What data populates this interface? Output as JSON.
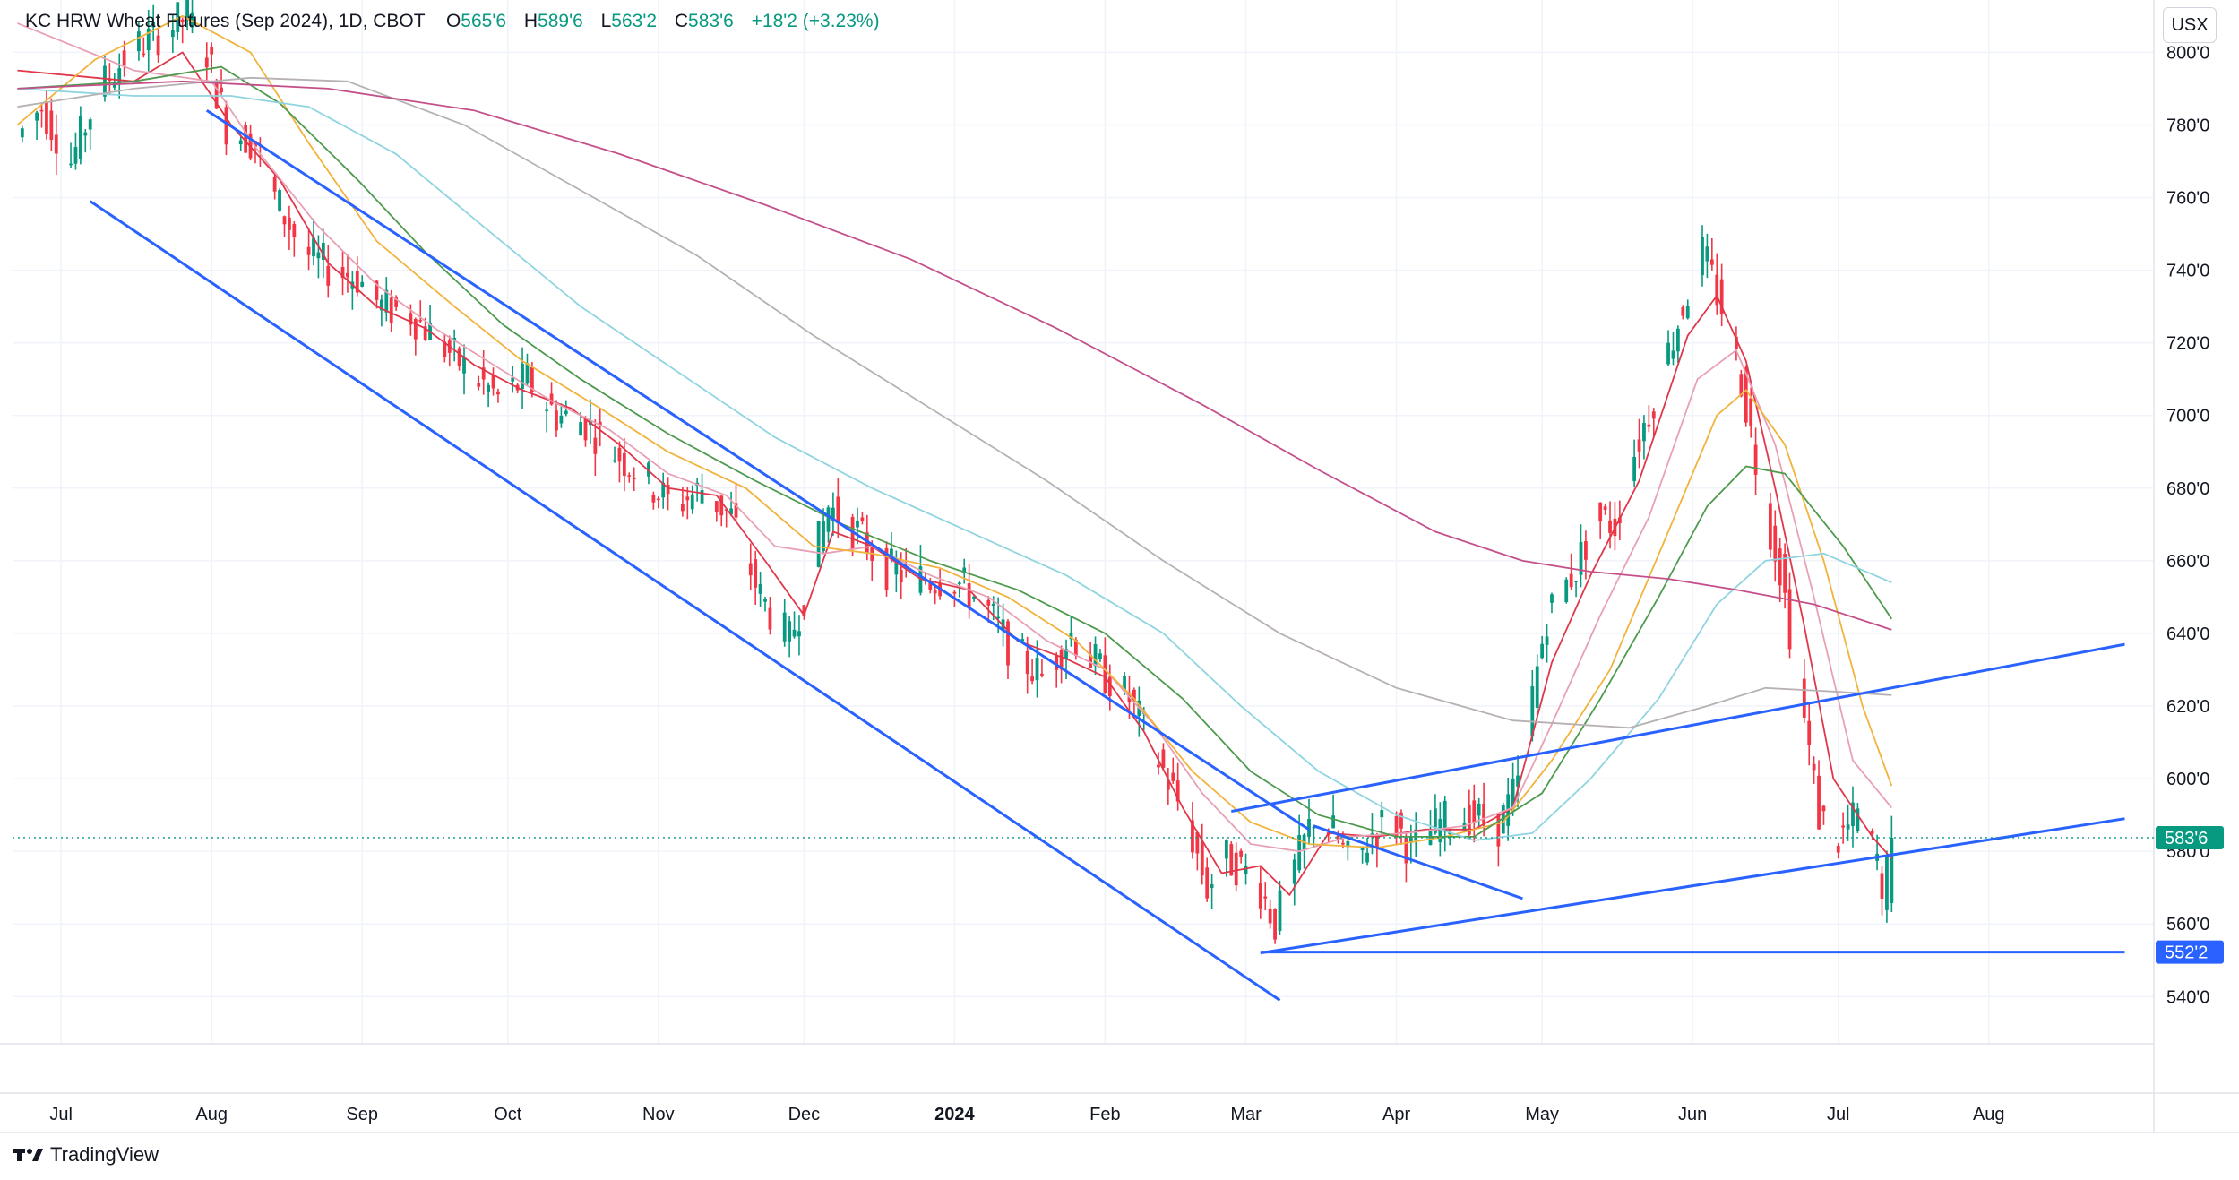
{
  "header": {
    "symbol": "KC HRW Wheat Futures (Sep 2024), 1D, CBOT",
    "open_label": "O",
    "open": "565'6",
    "high_label": "H",
    "high": "589'6",
    "low_label": "L",
    "low": "563'2",
    "close_label": "C",
    "close": "583'6",
    "change": "+18'2 (+3.23%)"
  },
  "currency_button": "USX",
  "branding": "TradingView",
  "colors": {
    "up": "#089981",
    "down": "#f23645",
    "trendline": "#2962ff",
    "price_tag_current": "#089981",
    "price_tag_support": "#2962ff"
  },
  "chart_data": {
    "type": "candlestick",
    "title": "KC HRW Wheat Futures (Sep 2024), 1D, CBOT",
    "xlabel": "",
    "ylabel": "USX",
    "ylim": [
      527,
      807
    ],
    "y_ticks": [
      {
        "v": 800,
        "label": "800'0"
      },
      {
        "v": 780,
        "label": "780'0"
      },
      {
        "v": 760,
        "label": "760'0"
      },
      {
        "v": 740,
        "label": "740'0"
      },
      {
        "v": 720,
        "label": "720'0"
      },
      {
        "v": 700,
        "label": "700'0"
      },
      {
        "v": 680,
        "label": "680'0"
      },
      {
        "v": 660,
        "label": "660'0"
      },
      {
        "v": 640,
        "label": "640'0"
      },
      {
        "v": 620,
        "label": "620'0"
      },
      {
        "v": 600,
        "label": "600'0"
      },
      {
        "v": 580,
        "label": "580'0"
      },
      {
        "v": 560,
        "label": "560'0"
      },
      {
        "v": 540,
        "label": "540'0"
      }
    ],
    "x_ticks": [
      {
        "d": 5,
        "label": "Jul"
      },
      {
        "d": 36,
        "label": "Aug"
      },
      {
        "d": 67,
        "label": "Sep"
      },
      {
        "d": 97,
        "label": "Oct"
      },
      {
        "d": 128,
        "label": "Nov"
      },
      {
        "d": 158,
        "label": "Dec"
      },
      {
        "d": 189,
        "label": "2024"
      },
      {
        "d": 220,
        "label": "Feb"
      },
      {
        "d": 249,
        "label": "Mar"
      },
      {
        "d": 280,
        "label": "Apr"
      },
      {
        "d": 310,
        "label": "May"
      },
      {
        "d": 341,
        "label": "Jun"
      },
      {
        "d": 371,
        "label": "Jul"
      },
      {
        "d": 402,
        "label": "Aug"
      }
    ],
    "xlim": [
      -5,
      436
    ],
    "ohlc_anchors": [
      [
        -4,
        775
      ],
      [
        2,
        785
      ],
      [
        8,
        770
      ],
      [
        14,
        790
      ],
      [
        20,
        800
      ],
      [
        26,
        805
      ],
      [
        32,
        810
      ],
      [
        36,
        800
      ],
      [
        40,
        780
      ],
      [
        46,
        775
      ],
      [
        50,
        760
      ],
      [
        56,
        745
      ],
      [
        62,
        740
      ],
      [
        67,
        738
      ],
      [
        72,
        730
      ],
      [
        78,
        728
      ],
      [
        84,
        720
      ],
      [
        90,
        712
      ],
      [
        96,
        705
      ],
      [
        102,
        710
      ],
      [
        108,
        700
      ],
      [
        114,
        698
      ],
      [
        120,
        690
      ],
      [
        126,
        683
      ],
      [
        132,
        675
      ],
      [
        138,
        680
      ],
      [
        144,
        672
      ],
      [
        150,
        650
      ],
      [
        156,
        638
      ],
      [
        160,
        655
      ],
      [
        164,
        675
      ],
      [
        170,
        668
      ],
      [
        176,
        658
      ],
      [
        182,
        655
      ],
      [
        190,
        655
      ],
      [
        196,
        648
      ],
      [
        202,
        635
      ],
      [
        208,
        628
      ],
      [
        214,
        640
      ],
      [
        220,
        630
      ],
      [
        226,
        622
      ],
      [
        232,
        605
      ],
      [
        238,
        588
      ],
      [
        242,
        570
      ],
      [
        246,
        578
      ],
      [
        252,
        573
      ],
      [
        256,
        560
      ],
      [
        260,
        575
      ],
      [
        264,
        590
      ],
      [
        268,
        585
      ],
      [
        272,
        575
      ],
      [
        276,
        585
      ],
      [
        280,
        590
      ],
      [
        284,
        580
      ],
      [
        290,
        588
      ],
      [
        296,
        590
      ],
      [
        302,
        587
      ],
      [
        306,
        598
      ],
      [
        308,
        615
      ],
      [
        312,
        645
      ],
      [
        318,
        658
      ],
      [
        322,
        672
      ],
      [
        326,
        670
      ],
      [
        330,
        690
      ],
      [
        334,
        705
      ],
      [
        340,
        730
      ],
      [
        344,
        745
      ],
      [
        348,
        730
      ],
      [
        352,
        710
      ],
      [
        356,
        680
      ],
      [
        360,
        658
      ],
      [
        364,
        625
      ],
      [
        368,
        590
      ],
      [
        372,
        583
      ],
      [
        376,
        590
      ],
      [
        380,
        578
      ],
      [
        381,
        563
      ],
      [
        382,
        583
      ]
    ],
    "moving_averages": [
      {
        "name": "MA short (red)",
        "color": "#e0364a",
        "points": [
          [
            -4,
            795
          ],
          [
            20,
            792
          ],
          [
            30,
            800
          ],
          [
            40,
            780
          ],
          [
            50,
            765
          ],
          [
            60,
            742
          ],
          [
            70,
            730
          ],
          [
            80,
            724
          ],
          [
            90,
            714
          ],
          [
            100,
            707
          ],
          [
            110,
            702
          ],
          [
            120,
            692
          ],
          [
            130,
            680
          ],
          [
            140,
            678
          ],
          [
            150,
            660
          ],
          [
            158,
            645
          ],
          [
            164,
            668
          ],
          [
            172,
            664
          ],
          [
            182,
            655
          ],
          [
            192,
            652
          ],
          [
            202,
            638
          ],
          [
            212,
            633
          ],
          [
            220,
            628
          ],
          [
            228,
            613
          ],
          [
            236,
            592
          ],
          [
            244,
            574
          ],
          [
            252,
            576
          ],
          [
            258,
            568
          ],
          [
            266,
            585
          ],
          [
            276,
            584
          ],
          [
            286,
            586
          ],
          [
            296,
            586
          ],
          [
            304,
            592
          ],
          [
            312,
            632
          ],
          [
            320,
            656
          ],
          [
            330,
            682
          ],
          [
            340,
            722
          ],
          [
            346,
            733
          ],
          [
            352,
            715
          ],
          [
            358,
            680
          ],
          [
            364,
            642
          ],
          [
            370,
            600
          ],
          [
            378,
            584
          ],
          [
            382,
            578
          ]
        ]
      },
      {
        "name": "MA pink",
        "color": "#e8a0b4",
        "points": [
          [
            -4,
            808
          ],
          [
            20,
            795
          ],
          [
            36,
            792
          ],
          [
            46,
            772
          ],
          [
            58,
            752
          ],
          [
            70,
            736
          ],
          [
            82,
            724
          ],
          [
            94,
            714
          ],
          [
            106,
            704
          ],
          [
            118,
            696
          ],
          [
            130,
            684
          ],
          [
            142,
            678
          ],
          [
            152,
            664
          ],
          [
            162,
            662
          ],
          [
            172,
            664
          ],
          [
            184,
            656
          ],
          [
            196,
            650
          ],
          [
            208,
            638
          ],
          [
            220,
            630
          ],
          [
            230,
            615
          ],
          [
            240,
            596
          ],
          [
            250,
            582
          ],
          [
            260,
            580
          ],
          [
            270,
            584
          ],
          [
            282,
            585
          ],
          [
            294,
            587
          ],
          [
            304,
            592
          ],
          [
            312,
            615
          ],
          [
            322,
            645
          ],
          [
            332,
            672
          ],
          [
            342,
            710
          ],
          [
            350,
            718
          ],
          [
            358,
            692
          ],
          [
            366,
            650
          ],
          [
            374,
            605
          ],
          [
            382,
            592
          ]
        ]
      },
      {
        "name": "MA orange",
        "color": "#f2b33d",
        "points": [
          [
            -4,
            780
          ],
          [
            12,
            798
          ],
          [
            30,
            810
          ],
          [
            44,
            800
          ],
          [
            56,
            775
          ],
          [
            70,
            748
          ],
          [
            86,
            730
          ],
          [
            100,
            715
          ],
          [
            116,
            702
          ],
          [
            130,
            690
          ],
          [
            146,
            680
          ],
          [
            160,
            664
          ],
          [
            172,
            662
          ],
          [
            186,
            658
          ],
          [
            200,
            650
          ],
          [
            214,
            638
          ],
          [
            226,
            622
          ],
          [
            238,
            602
          ],
          [
            250,
            588
          ],
          [
            262,
            582
          ],
          [
            276,
            581
          ],
          [
            290,
            584
          ],
          [
            302,
            588
          ],
          [
            312,
            605
          ],
          [
            324,
            630
          ],
          [
            336,
            668
          ],
          [
            346,
            700
          ],
          [
            352,
            707
          ],
          [
            360,
            692
          ],
          [
            368,
            660
          ],
          [
            376,
            620
          ],
          [
            382,
            598
          ]
        ]
      },
      {
        "name": "MA green",
        "color": "#4e9a4e",
        "points": [
          [
            -4,
            790
          ],
          [
            20,
            792
          ],
          [
            38,
            796
          ],
          [
            50,
            786
          ],
          [
            66,
            765
          ],
          [
            80,
            745
          ],
          [
            96,
            725
          ],
          [
            112,
            710
          ],
          [
            130,
            695
          ],
          [
            148,
            682
          ],
          [
            166,
            670
          ],
          [
            184,
            660
          ],
          [
            202,
            652
          ],
          [
            220,
            640
          ],
          [
            236,
            622
          ],
          [
            250,
            602
          ],
          [
            264,
            590
          ],
          [
            280,
            584
          ],
          [
            296,
            584
          ],
          [
            310,
            596
          ],
          [
            322,
            622
          ],
          [
            334,
            650
          ],
          [
            344,
            675
          ],
          [
            352,
            686
          ],
          [
            360,
            684
          ],
          [
            372,
            664
          ],
          [
            382,
            644
          ]
        ]
      },
      {
        "name": "MA cyan",
        "color": "#8fd4e0",
        "points": [
          [
            -4,
            790
          ],
          [
            20,
            788
          ],
          [
            40,
            788
          ],
          [
            56,
            785
          ],
          [
            74,
            772
          ],
          [
            92,
            752
          ],
          [
            112,
            730
          ],
          [
            132,
            712
          ],
          [
            152,
            694
          ],
          [
            172,
            680
          ],
          [
            192,
            668
          ],
          [
            212,
            656
          ],
          [
            232,
            640
          ],
          [
            248,
            620
          ],
          [
            264,
            602
          ],
          [
            280,
            590
          ],
          [
            296,
            583
          ],
          [
            308,
            585
          ],
          [
            320,
            600
          ],
          [
            334,
            622
          ],
          [
            346,
            648
          ],
          [
            356,
            660
          ],
          [
            368,
            662
          ],
          [
            382,
            654
          ]
        ]
      },
      {
        "name": "MA gray",
        "color": "#b7b1b3",
        "points": [
          [
            -4,
            785
          ],
          [
            20,
            790
          ],
          [
            44,
            793
          ],
          [
            64,
            792
          ],
          [
            88,
            780
          ],
          [
            112,
            762
          ],
          [
            136,
            744
          ],
          [
            160,
            722
          ],
          [
            184,
            702
          ],
          [
            208,
            682
          ],
          [
            232,
            660
          ],
          [
            256,
            640
          ],
          [
            280,
            625
          ],
          [
            304,
            616
          ],
          [
            328,
            614
          ],
          [
            344,
            620
          ],
          [
            356,
            625
          ],
          [
            370,
            624
          ],
          [
            382,
            623
          ]
        ]
      },
      {
        "name": "MA magenta",
        "color": "#c4508a",
        "points": [
          [
            -4,
            790
          ],
          [
            30,
            792
          ],
          [
            60,
            790
          ],
          [
            90,
            784
          ],
          [
            120,
            772
          ],
          [
            150,
            758
          ],
          [
            180,
            743
          ],
          [
            210,
            724
          ],
          [
            240,
            703
          ],
          [
            264,
            685
          ],
          [
            288,
            668
          ],
          [
            306,
            660
          ],
          [
            320,
            657
          ],
          [
            336,
            655
          ],
          [
            350,
            652
          ],
          [
            366,
            648
          ],
          [
            382,
            641
          ]
        ]
      }
    ],
    "trendlines": [
      {
        "name": "upper channel line",
        "points": [
          [
            35,
            784
          ],
          [
            262,
            586
          ]
        ]
      },
      {
        "name": "descending resistance line",
        "points": [
          [
            263,
            587
          ],
          [
            306,
            567
          ]
        ]
      },
      {
        "name": "lower channel line",
        "points": [
          [
            11,
            759
          ],
          [
            256,
            539
          ]
        ]
      },
      {
        "name": "upper rising line",
        "points": [
          [
            246,
            591
          ],
          [
            430,
            637
          ]
        ]
      },
      {
        "name": "lower rising line",
        "points": [
          [
            252,
            552
          ],
          [
            430,
            589
          ]
        ]
      },
      {
        "name": "support line",
        "points": [
          [
            252,
            552.25
          ],
          [
            430,
            552.25
          ]
        ]
      }
    ],
    "current_price": {
      "value": 583.75,
      "label": "583'6"
    },
    "support_level": {
      "value": 552.25,
      "label": "552'2"
    }
  }
}
